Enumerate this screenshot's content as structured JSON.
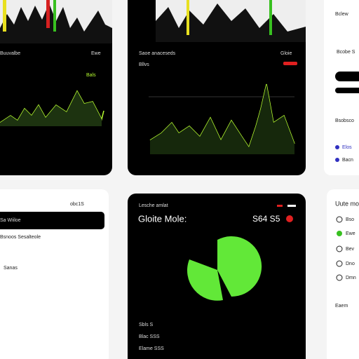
{
  "cards": {
    "trend_left": {
      "labels": [
        "Buuvalbe",
        "Ewe",
        "Bals"
      ]
    },
    "trend_main": {
      "labels": [
        "Saoe anaceseds",
        "Gloie",
        "Bllvs"
      ]
    },
    "detail": {
      "title": "Lesche amlat",
      "heading": "Gloite Mole:",
      "amount": "S64 S5",
      "rows": [
        "Sbls S",
        "Blac SSS",
        "Elame SSS"
      ]
    }
  },
  "list_panel": {
    "header": "obc1S",
    "selected": "Sa Wiiloe",
    "rows": [
      "Bsnoos Sesalteole",
      "Sanas"
    ]
  },
  "side_top": {
    "rows": [
      "Bclew",
      "Bcobe S",
      "Bsobsco",
      "Elos",
      "Bacn"
    ]
  },
  "side_bottom": {
    "header": "Uute mo",
    "rows": [
      "Bso",
      "Ewe",
      "Bev",
      "Dno",
      "Dmn",
      "Eaem"
    ]
  }
}
